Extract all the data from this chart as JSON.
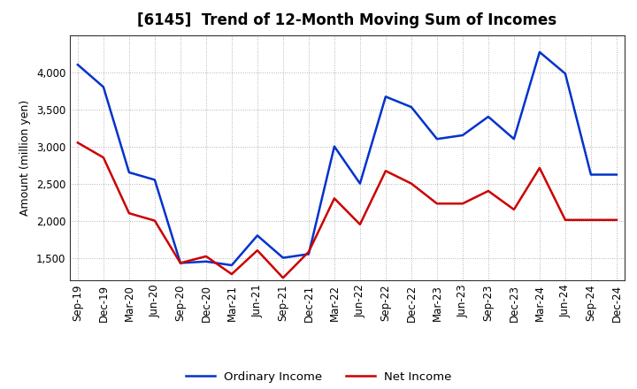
{
  "title": "[6145]  Trend of 12-Month Moving Sum of Incomes",
  "ylabel": "Amount (million yen)",
  "background_color": "#ffffff",
  "grid_color": "#999999",
  "x_labels": [
    "Sep-19",
    "Dec-19",
    "Mar-20",
    "Jun-20",
    "Sep-20",
    "Dec-20",
    "Mar-21",
    "Jun-21",
    "Sep-21",
    "Dec-21",
    "Mar-22",
    "Jun-22",
    "Sep-22",
    "Dec-22",
    "Mar-23",
    "Jun-23",
    "Sep-23",
    "Dec-23",
    "Mar-24",
    "Jun-24",
    "Sep-24",
    "Dec-24"
  ],
  "ordinary_income": [
    4100,
    3800,
    2650,
    2550,
    1430,
    1450,
    1400,
    1800,
    1500,
    1550,
    3000,
    2500,
    3670,
    3530,
    3100,
    3150,
    3400,
    3100,
    4270,
    3980,
    2620,
    2620
  ],
  "net_income": [
    3050,
    2850,
    2100,
    2000,
    1430,
    1520,
    1280,
    1600,
    1230,
    1580,
    2300,
    1950,
    2670,
    2500,
    2230,
    2230,
    2400,
    2150,
    2710,
    2010,
    2010,
    2010
  ],
  "ordinary_color": "#0033cc",
  "net_color": "#cc0000",
  "ylim_min": 1200,
  "ylim_max": 4500,
  "yticks": [
    1500,
    2000,
    2500,
    3000,
    3500,
    4000
  ],
  "line_width": 1.8,
  "title_fontsize": 12,
  "axis_fontsize": 9,
  "tick_fontsize": 8.5,
  "legend_fontsize": 9.5
}
